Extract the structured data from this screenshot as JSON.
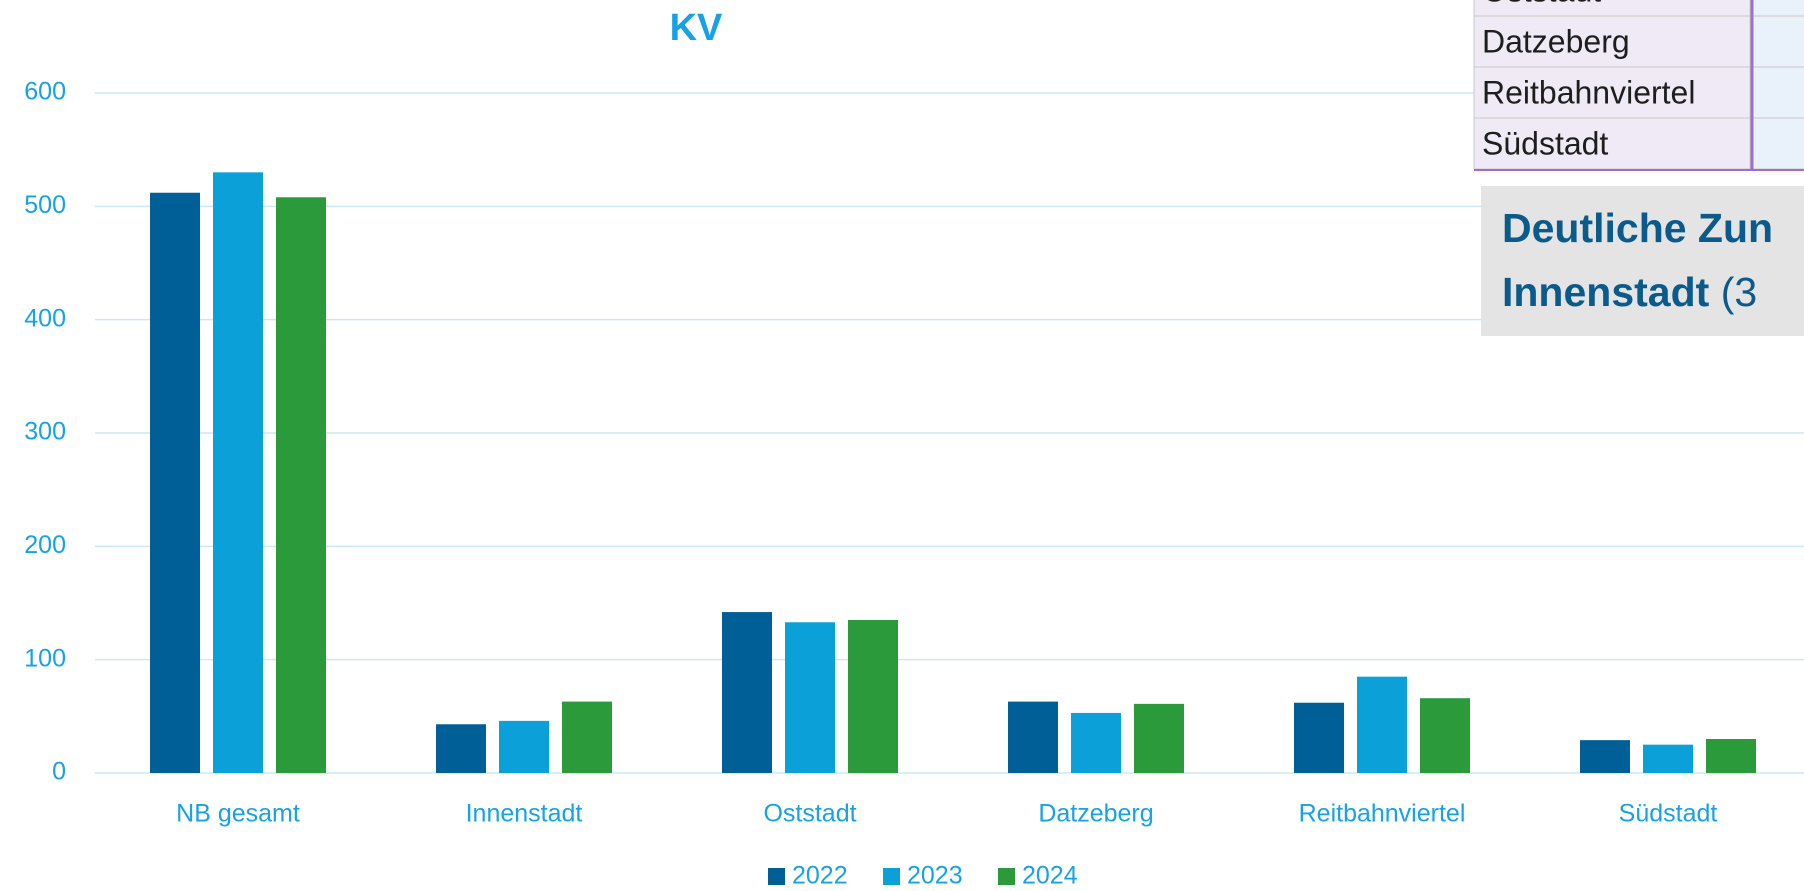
{
  "chart_data": {
    "type": "bar",
    "title": "KV",
    "categories": [
      "NB gesamt",
      "Innenstadt",
      "Oststadt",
      "Datzeberg",
      "Reitbahnviertel",
      "Südstadt"
    ],
    "series": [
      {
        "name": "2022",
        "color": "#005f96",
        "values": [
          512,
          43,
          142,
          63,
          62,
          29
        ]
      },
      {
        "name": "2023",
        "color": "#0ca0d9",
        "values": [
          530,
          46,
          133,
          53,
          85,
          25
        ]
      },
      {
        "name": "2024",
        "color": "#2a9a3a",
        "values": [
          508,
          63,
          135,
          61,
          66,
          30
        ]
      }
    ],
    "ylim": [
      0,
      600
    ],
    "yticks": [
      0,
      100,
      200,
      300,
      400,
      500,
      600
    ],
    "grid": true,
    "legend": "bottom"
  },
  "table": {
    "rows": [
      "Oststadt",
      "Datzeberg",
      "Reitbahnviertel",
      "Südstadt"
    ]
  },
  "callout": {
    "line1": "Deutliche Zun",
    "line2_bold": "Innenstadt",
    "line2_rest": "(3"
  }
}
